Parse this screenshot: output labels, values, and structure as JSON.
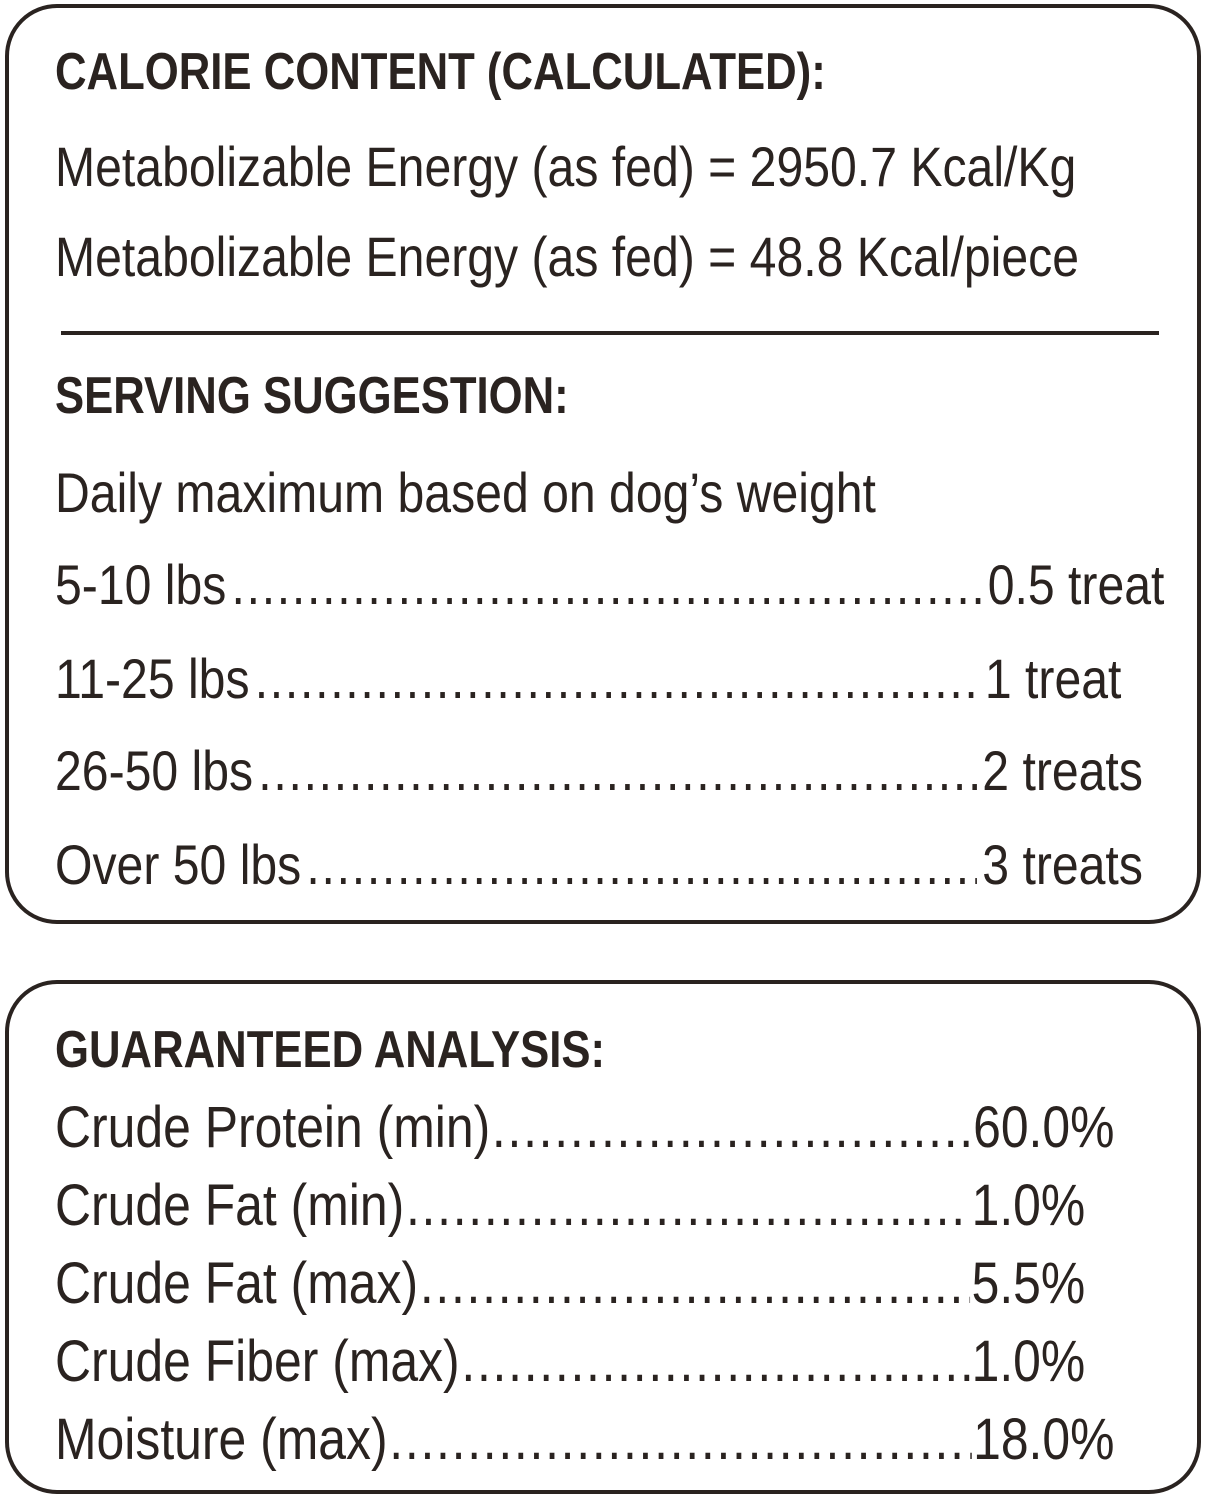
{
  "calorie": {
    "heading": "CALORIE CONTENT (CALCULATED):",
    "lines": [
      "Metabolizable Energy (as fed) = 2950.7 Kcal/Kg",
      "Metabolizable Energy (as fed) = 48.8 Kcal/piece"
    ]
  },
  "serving": {
    "heading": "SERVING SUGGESTION:",
    "intro": "Daily maximum based on dog’s weight",
    "rows": [
      {
        "label": "5-10 lbs",
        "value": "0.5 treat"
      },
      {
        "label": "11-25 lbs",
        "value": "1 treat"
      },
      {
        "label": "26-50 lbs",
        "value": "2 treats"
      },
      {
        "label": "Over 50 lbs",
        "value": "3 treats"
      }
    ]
  },
  "analysis": {
    "heading": "GUARANTEED ANALYSIS:",
    "rows": [
      {
        "label": "Crude Protein (min)",
        "value": "60.0%"
      },
      {
        "label": "Crude Fat (min)",
        "value": "1.0%"
      },
      {
        "label": "Crude Fat (max)",
        "value": "5.5%"
      },
      {
        "label": "Crude Fiber (max)",
        "value": "1.0%"
      },
      {
        "label": "Moisture (max)",
        "value": "18.0%"
      }
    ]
  }
}
